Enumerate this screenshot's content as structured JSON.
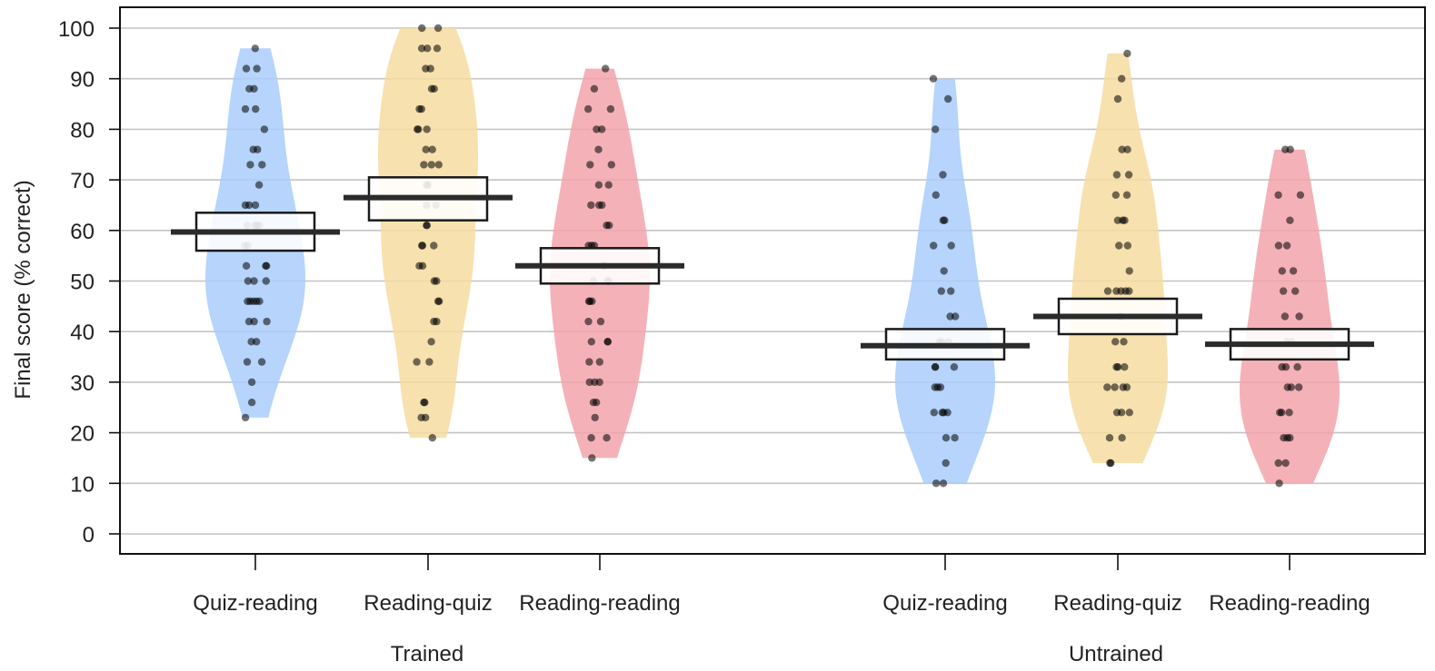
{
  "chart_data": {
    "type": "pirate",
    "ylabel": "Final score (% correct)",
    "ylim": [
      0,
      100
    ],
    "yticks": [
      "0",
      "10",
      "20",
      "30",
      "40",
      "50",
      "60",
      "70",
      "80",
      "90",
      "100"
    ],
    "grid": true,
    "groups": [
      {
        "name": "Trained",
        "conditions": [
          {
            "label": "Quiz-reading",
            "color": "#a9cdfb",
            "mean": 59.7,
            "ci": [
              56,
              63.5
            ],
            "points": [
              96,
              92,
              92,
              88,
              88,
              84,
              84,
              80,
              76,
              76,
              73,
              73,
              69,
              65,
              65,
              65,
              61,
              61,
              61,
              61,
              57,
              57,
              53,
              53,
              53,
              50,
              50,
              50,
              46,
              46,
              46,
              46,
              46,
              42,
              42,
              42,
              38,
              38,
              34,
              34,
              30,
              26,
              23
            ]
          },
          {
            "label": "Reading-quiz",
            "color": "#f6dca0",
            "mean": 66.5,
            "ci": [
              62,
              70.5
            ],
            "points": [
              100,
              100,
              96,
              96,
              96,
              92,
              92,
              88,
              88,
              84,
              84,
              80,
              80,
              80,
              76,
              76,
              73,
              73,
              73,
              69,
              69,
              65,
              65,
              61,
              61,
              57,
              57,
              57,
              53,
              53,
              50,
              50,
              46,
              46,
              42,
              42,
              38,
              34,
              34,
              26,
              26,
              23,
              23,
              19
            ]
          },
          {
            "label": "Reading-reading",
            "color": "#f2a4ab",
            "mean": 53,
            "ci": [
              49.5,
              56.5
            ],
            "points": [
              92,
              88,
              84,
              84,
              80,
              80,
              76,
              73,
              73,
              69,
              69,
              65,
              65,
              65,
              61,
              61,
              57,
              57,
              57,
              53,
              53,
              53,
              50,
              50,
              50,
              46,
              46,
              46,
              42,
              42,
              38,
              38,
              38,
              34,
              34,
              30,
              30,
              30,
              26,
              26,
              23,
              19,
              19,
              15
            ]
          }
        ]
      },
      {
        "name": "Untrained",
        "conditions": [
          {
            "label": "Quiz-reading",
            "color": "#a9cdfb",
            "mean": 37.2,
            "ci": [
              34.5,
              40.5
            ],
            "points": [
              90,
              86,
              80,
              71,
              67,
              62,
              62,
              57,
              57,
              52,
              48,
              48,
              43,
              43,
              38,
              38,
              38,
              33,
              33,
              33,
              29,
              29,
              29,
              24,
              24,
              24,
              24,
              19,
              19,
              14,
              10,
              10
            ]
          },
          {
            "label": "Reading-quiz",
            "color": "#f6dca0",
            "mean": 43,
            "ci": [
              39.5,
              46.5
            ],
            "points": [
              95,
              90,
              86,
              76,
              76,
              71,
              71,
              67,
              67,
              62,
              62,
              62,
              57,
              57,
              52,
              48,
              48,
              48,
              48,
              48,
              43,
              43,
              38,
              38,
              33,
              33,
              33,
              29,
              29,
              29,
              29,
              24,
              24,
              24,
              19,
              19,
              14,
              14
            ]
          },
          {
            "label": "Reading-reading",
            "color": "#f2a4ab",
            "mean": 37.5,
            "ci": [
              34.5,
              40.5
            ],
            "points": [
              76,
              76,
              67,
              67,
              62,
              57,
              57,
              52,
              52,
              48,
              48,
              43,
              43,
              38,
              38,
              33,
              33,
              33,
              29,
              29,
              29,
              24,
              24,
              24,
              19,
              19,
              19,
              14,
              14,
              10
            ]
          }
        ]
      }
    ]
  }
}
